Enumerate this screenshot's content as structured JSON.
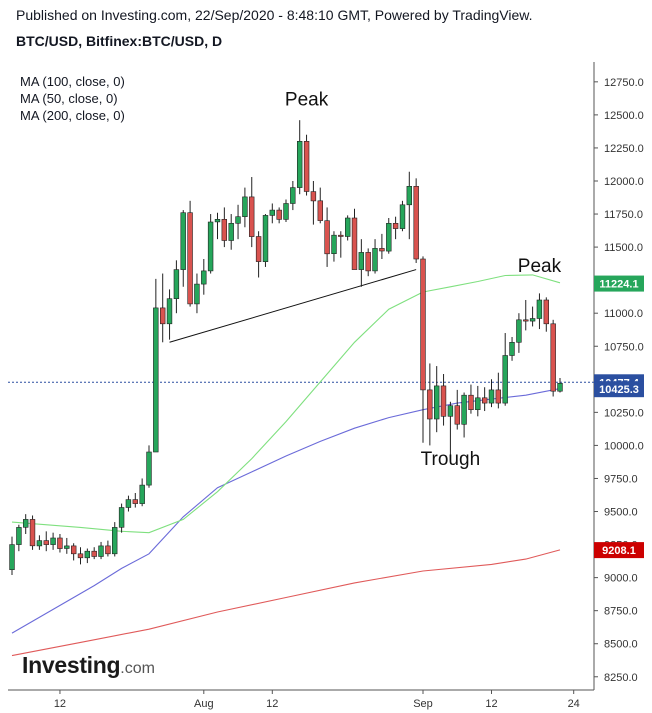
{
  "header": {
    "published": "Published on Investing.com, 22/Sep/2020 - 8:48:10 GMT, Powered by TradingView.",
    "symbol": "BTC/USD, Bitfinex:BTC/USD, D"
  },
  "legend": {
    "ma100": "MA (100, close, 0)",
    "ma50": "MA (50, close, 0)",
    "ma200": "MA (200, close, 0)"
  },
  "logo": {
    "brand": "Investing",
    "suffix": ".com"
  },
  "colors": {
    "up": "#26a65b",
    "down": "#d9534f",
    "wick": "#222222",
    "ma50": "#7fe07f",
    "ma100": "#6b6bd9",
    "ma200": "#e05a5a",
    "last_price_line": "#2b4fa0"
  },
  "chart_data": {
    "type": "candlestick",
    "title": "BTC/USD, Bitfinex:BTC/USD, D",
    "x_ticks": [
      "12",
      "Aug",
      "12",
      "Sep",
      "12",
      "24"
    ],
    "ylim": [
      8150,
      12900
    ],
    "y_ticks": [
      8250,
      8500,
      8750,
      9000,
      9250,
      9500,
      9750,
      10000,
      10250,
      10500,
      10750,
      11000,
      11250,
      11500,
      11750,
      12000,
      12250,
      12500,
      12750
    ],
    "y_tick_labels": [
      "8250.0",
      "8500.0",
      "8750.0",
      "9000.0",
      "9250.0",
      "9500.0",
      "9750.0",
      "10000.0",
      "10250.0",
      "10500.0",
      "10750.0",
      "11000.0",
      "11250.0",
      "11500.0",
      "11750.0",
      "12000.0",
      "12250.0",
      "12500.0",
      "12750.0"
    ],
    "candles": [
      {
        "o": 9060,
        "h": 9310,
        "l": 9020,
        "c": 9250
      },
      {
        "o": 9250,
        "h": 9400,
        "l": 9200,
        "c": 9380
      },
      {
        "o": 9380,
        "h": 9480,
        "l": 9330,
        "c": 9440
      },
      {
        "o": 9440,
        "h": 9470,
        "l": 9210,
        "c": 9240
      },
      {
        "o": 9240,
        "h": 9320,
        "l": 9210,
        "c": 9280
      },
      {
        "o": 9280,
        "h": 9350,
        "l": 9200,
        "c": 9250
      },
      {
        "o": 9250,
        "h": 9340,
        "l": 9210,
        "c": 9300
      },
      {
        "o": 9300,
        "h": 9330,
        "l": 9190,
        "c": 9220
      },
      {
        "o": 9220,
        "h": 9300,
        "l": 9180,
        "c": 9240
      },
      {
        "o": 9240,
        "h": 9260,
        "l": 9130,
        "c": 9180
      },
      {
        "o": 9180,
        "h": 9230,
        "l": 9100,
        "c": 9150
      },
      {
        "o": 9150,
        "h": 9220,
        "l": 9110,
        "c": 9200
      },
      {
        "o": 9200,
        "h": 9230,
        "l": 9140,
        "c": 9160
      },
      {
        "o": 9160,
        "h": 9270,
        "l": 9140,
        "c": 9240
      },
      {
        "o": 9240,
        "h": 9280,
        "l": 9160,
        "c": 9180
      },
      {
        "o": 9180,
        "h": 9420,
        "l": 9160,
        "c": 9380
      },
      {
        "o": 9380,
        "h": 9560,
        "l": 9340,
        "c": 9530
      },
      {
        "o": 9530,
        "h": 9620,
        "l": 9500,
        "c": 9590
      },
      {
        "o": 9590,
        "h": 9640,
        "l": 9530,
        "c": 9560
      },
      {
        "o": 9560,
        "h": 9750,
        "l": 9540,
        "c": 9700
      },
      {
        "o": 9700,
        "h": 10000,
        "l": 9680,
        "c": 9950
      },
      {
        "o": 9950,
        "h": 11260,
        "l": 9950,
        "c": 11040
      },
      {
        "o": 11040,
        "h": 11300,
        "l": 10780,
        "c": 10920
      },
      {
        "o": 10920,
        "h": 11180,
        "l": 10800,
        "c": 11110
      },
      {
        "o": 11110,
        "h": 11400,
        "l": 11000,
        "c": 11330
      },
      {
        "o": 11330,
        "h": 11780,
        "l": 11200,
        "c": 11760
      },
      {
        "o": 11760,
        "h": 11850,
        "l": 11050,
        "c": 11070
      },
      {
        "o": 11070,
        "h": 11300,
        "l": 11000,
        "c": 11220
      },
      {
        "o": 11220,
        "h": 11410,
        "l": 11140,
        "c": 11320
      },
      {
        "o": 11320,
        "h": 11750,
        "l": 11300,
        "c": 11690
      },
      {
        "o": 11690,
        "h": 11760,
        "l": 11560,
        "c": 11710
      },
      {
        "o": 11710,
        "h": 11800,
        "l": 11500,
        "c": 11550
      },
      {
        "o": 11550,
        "h": 11750,
        "l": 11480,
        "c": 11680
      },
      {
        "o": 11680,
        "h": 11820,
        "l": 11560,
        "c": 11730
      },
      {
        "o": 11730,
        "h": 11950,
        "l": 11650,
        "c": 11880
      },
      {
        "o": 11880,
        "h": 12030,
        "l": 11500,
        "c": 11580
      },
      {
        "o": 11580,
        "h": 11620,
        "l": 11270,
        "c": 11390
      },
      {
        "o": 11390,
        "h": 11750,
        "l": 11350,
        "c": 11740
      },
      {
        "o": 11740,
        "h": 11830,
        "l": 11680,
        "c": 11780
      },
      {
        "o": 11780,
        "h": 11800,
        "l": 11680,
        "c": 11710
      },
      {
        "o": 11710,
        "h": 11860,
        "l": 11690,
        "c": 11830
      },
      {
        "o": 11830,
        "h": 12000,
        "l": 11780,
        "c": 11950
      },
      {
        "o": 11950,
        "h": 12460,
        "l": 11900,
        "c": 12300
      },
      {
        "o": 12300,
        "h": 12350,
        "l": 11890,
        "c": 11920
      },
      {
        "o": 11920,
        "h": 12000,
        "l": 11670,
        "c": 11850
      },
      {
        "o": 11850,
        "h": 11950,
        "l": 11680,
        "c": 11700
      },
      {
        "o": 11700,
        "h": 11800,
        "l": 11350,
        "c": 11450
      },
      {
        "o": 11450,
        "h": 11620,
        "l": 11390,
        "c": 11590
      },
      {
        "o": 11590,
        "h": 11620,
        "l": 11420,
        "c": 11580
      },
      {
        "o": 11580,
        "h": 11740,
        "l": 11550,
        "c": 11720
      },
      {
        "o": 11720,
        "h": 11790,
        "l": 11370,
        "c": 11330
      },
      {
        "o": 11330,
        "h": 11560,
        "l": 11200,
        "c": 11460
      },
      {
        "o": 11460,
        "h": 11490,
        "l": 11280,
        "c": 11320
      },
      {
        "o": 11320,
        "h": 11560,
        "l": 11300,
        "c": 11490
      },
      {
        "o": 11490,
        "h": 11600,
        "l": 11410,
        "c": 11470
      },
      {
        "o": 11470,
        "h": 11720,
        "l": 11450,
        "c": 11680
      },
      {
        "o": 11680,
        "h": 11730,
        "l": 11560,
        "c": 11640
      },
      {
        "o": 11640,
        "h": 11850,
        "l": 11620,
        "c": 11820
      },
      {
        "o": 11820,
        "h": 12070,
        "l": 11560,
        "c": 11960
      },
      {
        "o": 11960,
        "h": 12020,
        "l": 11380,
        "c": 11410
      },
      {
        "o": 11410,
        "h": 11430,
        "l": 10020,
        "c": 10420
      },
      {
        "o": 10420,
        "h": 10620,
        "l": 10000,
        "c": 10200
      },
      {
        "o": 10200,
        "h": 10600,
        "l": 10100,
        "c": 10450
      },
      {
        "o": 10450,
        "h": 10540,
        "l": 10150,
        "c": 10220
      },
      {
        "o": 10220,
        "h": 10330,
        "l": 9880,
        "c": 10300
      },
      {
        "o": 10300,
        "h": 10420,
        "l": 10120,
        "c": 10160
      },
      {
        "o": 10160,
        "h": 10400,
        "l": 10060,
        "c": 10380
      },
      {
        "o": 10380,
        "h": 10460,
        "l": 10240,
        "c": 10270
      },
      {
        "o": 10270,
        "h": 10450,
        "l": 10220,
        "c": 10360
      },
      {
        "o": 10360,
        "h": 10440,
        "l": 10260,
        "c": 10320
      },
      {
        "o": 10320,
        "h": 10500,
        "l": 10290,
        "c": 10420
      },
      {
        "o": 10420,
        "h": 10550,
        "l": 10280,
        "c": 10320
      },
      {
        "o": 10320,
        "h": 10850,
        "l": 10300,
        "c": 10680
      },
      {
        "o": 10680,
        "h": 10820,
        "l": 10640,
        "c": 10780
      },
      {
        "o": 10780,
        "h": 11000,
        "l": 10700,
        "c": 10950
      },
      {
        "o": 10950,
        "h": 11100,
        "l": 10870,
        "c": 10940
      },
      {
        "o": 10940,
        "h": 11050,
        "l": 10900,
        "c": 10960
      },
      {
        "o": 10960,
        "h": 11150,
        "l": 10880,
        "c": 11100
      },
      {
        "o": 11100,
        "h": 11120,
        "l": 10860,
        "c": 10920
      },
      {
        "o": 10920,
        "h": 10950,
        "l": 10370,
        "c": 10410
      },
      {
        "o": 10410,
        "h": 10510,
        "l": 10400,
        "c": 10470
      }
    ],
    "ma50": [
      [
        0,
        9420
      ],
      [
        10,
        9380
      ],
      [
        16,
        9350
      ],
      [
        20,
        9340
      ],
      [
        25,
        9440
      ],
      [
        30,
        9650
      ],
      [
        35,
        9900
      ],
      [
        40,
        10180
      ],
      [
        45,
        10480
      ],
      [
        50,
        10780
      ],
      [
        55,
        11030
      ],
      [
        60,
        11160
      ],
      [
        64,
        11200
      ],
      [
        68,
        11240
      ],
      [
        72,
        11285
      ],
      [
        76,
        11290
      ],
      [
        80,
        11230
      ]
    ],
    "ma100": [
      [
        0,
        8580
      ],
      [
        6,
        8760
      ],
      [
        12,
        8940
      ],
      [
        16,
        9070
      ],
      [
        20,
        9180
      ],
      [
        25,
        9460
      ],
      [
        30,
        9680
      ],
      [
        35,
        9800
      ],
      [
        40,
        9920
      ],
      [
        45,
        10030
      ],
      [
        50,
        10130
      ],
      [
        55,
        10210
      ],
      [
        60,
        10270
      ],
      [
        65,
        10320
      ],
      [
        70,
        10350
      ],
      [
        75,
        10380
      ],
      [
        80,
        10430
      ]
    ],
    "ma200": [
      [
        0,
        8410
      ],
      [
        10,
        8510
      ],
      [
        20,
        8610
      ],
      [
        30,
        8740
      ],
      [
        40,
        8850
      ],
      [
        50,
        8960
      ],
      [
        60,
        9050
      ],
      [
        70,
        9100
      ],
      [
        75,
        9140
      ],
      [
        80,
        9210
      ]
    ],
    "trendline": [
      [
        23,
        10780
      ],
      [
        59,
        11330
      ]
    ],
    "annotations": [
      {
        "text": "Peak",
        "x": 43,
        "y": 12570
      },
      {
        "text": "Trough",
        "x": 64,
        "y": 9850
      },
      {
        "text": "Peak",
        "x": 77,
        "y": 11310
      }
    ],
    "price_labels": [
      {
        "value": 11224.1,
        "text": "11224.1",
        "color": "#26a65b"
      },
      {
        "value": 10477.4,
        "text": "10477.4",
        "color": "#2b4fa0"
      },
      {
        "value": 10425.3,
        "text": "10425.3",
        "color": "#2b4fa0"
      },
      {
        "value": 9208.1,
        "text": "9208.1",
        "color": "#cc0000"
      }
    ],
    "last_price": 10477.4
  }
}
